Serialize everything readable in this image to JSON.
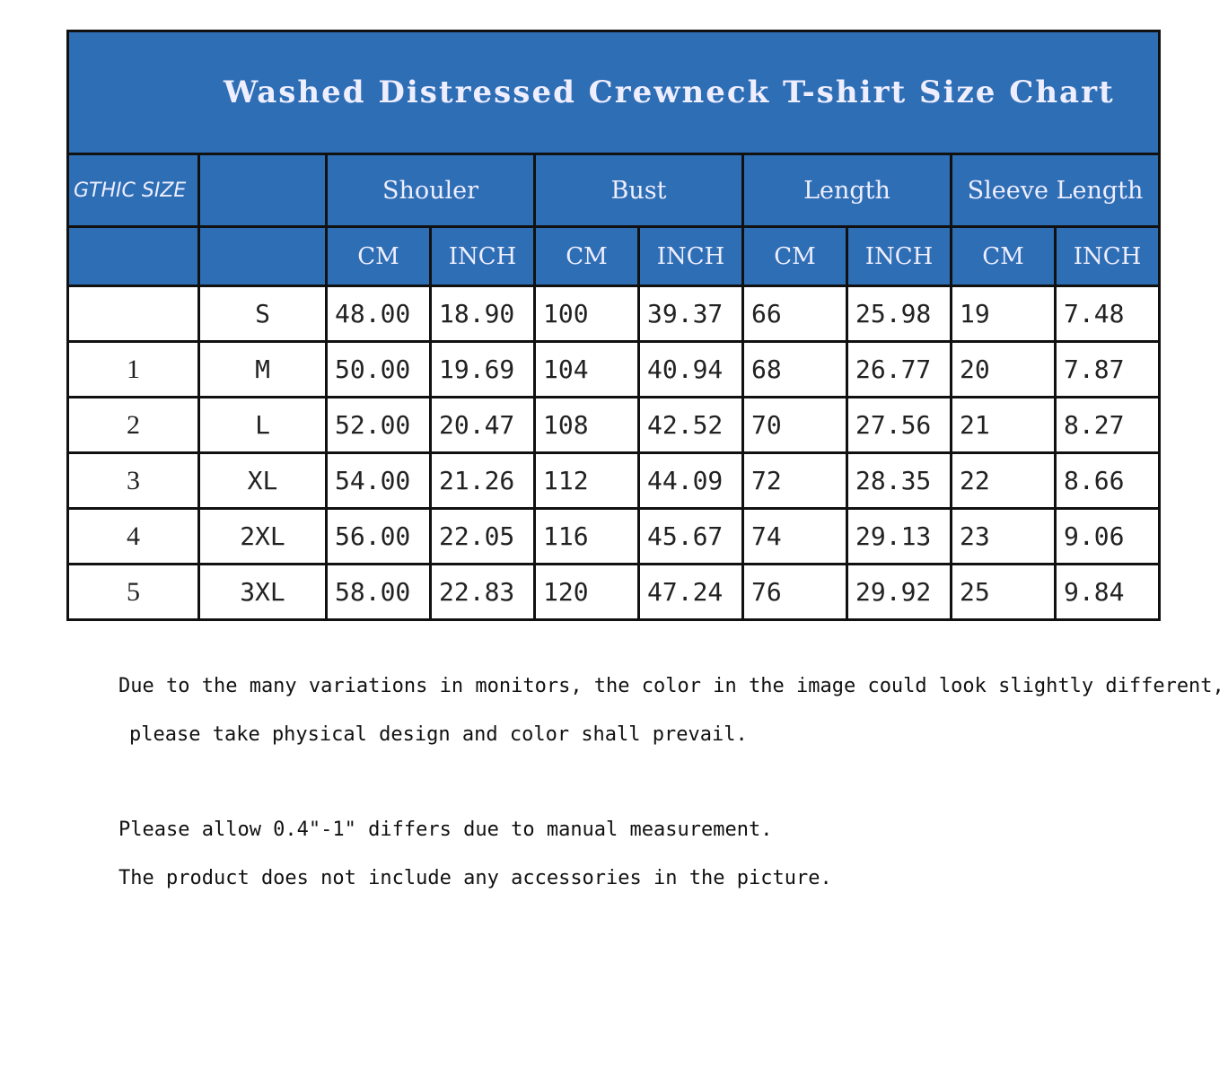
{
  "title": "Washed Distressed Crewneck T-shirt Size Chart",
  "header": {
    "size_label": "GTHIC SIZE",
    "groups": [
      "Shouler",
      "Bust",
      "Length",
      "Sleeve Length"
    ],
    "units": [
      "CM",
      "INCH",
      "CM",
      "INCH",
      "CM",
      "INCH",
      "CM",
      "INCH"
    ]
  },
  "rows": [
    {
      "num": "",
      "size": "S",
      "values": [
        "48.00",
        "18.90",
        "100",
        "39.37",
        "66",
        "25.98",
        "19",
        "7.48"
      ]
    },
    {
      "num": "1",
      "size": "M",
      "values": [
        "50.00",
        "19.69",
        "104",
        "40.94",
        "68",
        "26.77",
        "20",
        "7.87"
      ]
    },
    {
      "num": "2",
      "size": "L",
      "values": [
        "52.00",
        "20.47",
        "108",
        "42.52",
        "70",
        "27.56",
        "21",
        "8.27"
      ]
    },
    {
      "num": "3",
      "size": "XL",
      "values": [
        "54.00",
        "21.26",
        "112",
        "44.09",
        "72",
        "28.35",
        "22",
        "8.66"
      ]
    },
    {
      "num": "4",
      "size": "2XL",
      "values": [
        "56.00",
        "22.05",
        "116",
        "45.67",
        "74",
        "29.13",
        "23",
        "9.06"
      ]
    },
    {
      "num": "5",
      "size": "3XL",
      "values": [
        "58.00",
        "22.83",
        "120",
        "47.24",
        "76",
        "29.92",
        "25",
        "9.84"
      ]
    }
  ],
  "notes": [
    "Due to the many variations in monitors, the color in the image could look slightly different,",
    "please take physical design and color shall prevail.",
    "Please allow 0.4\"-1\" differs due to manual measurement.",
    "The product does not include any accessories in the picture."
  ],
  "colors": {
    "header_bg": "#2e6eb5"
  }
}
